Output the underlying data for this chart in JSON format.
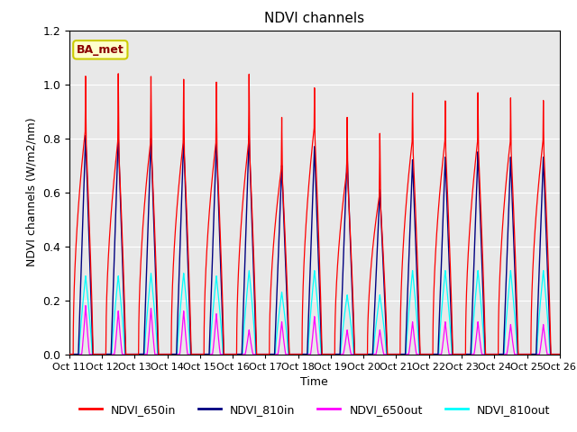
{
  "title": "NDVI channels",
  "xlabel": "Time",
  "ylabel": "NDVI channels (W/m2/nm)",
  "ylim": [
    0.0,
    1.2
  ],
  "yticks": [
    0.0,
    0.2,
    0.4,
    0.6,
    0.8,
    1.0,
    1.2
  ],
  "xtick_labels": [
    "Oct 11",
    "Oct 12",
    "Oct 13",
    "Oct 14",
    "Oct 15",
    "Oct 16",
    "Oct 17",
    "Oct 18",
    "Oct 19",
    "Oct 20",
    "Oct 21",
    "Oct 22",
    "Oct 23",
    "Oct 24",
    "Oct 25",
    "Oct 26"
  ],
  "legend_labels": [
    "NDVI_650in",
    "NDVI_810in",
    "NDVI_650out",
    "NDVI_810out"
  ],
  "legend_colors": [
    "red",
    "navy",
    "magenta",
    "cyan"
  ],
  "annotation_text": "BA_met",
  "annotation_color": "darkred",
  "annotation_bg": "#ffffcc",
  "annotation_border": "#cccc00",
  "bg_color": "#e8e8e8",
  "n_cycles": 15,
  "peak_650in": [
    1.03,
    1.04,
    1.03,
    1.02,
    1.01,
    1.04,
    0.88,
    0.99,
    0.88,
    0.82,
    0.97,
    0.94,
    0.97,
    0.95,
    0.94
  ],
  "peak_810in": [
    0.81,
    0.81,
    0.8,
    0.8,
    0.79,
    0.81,
    0.7,
    0.77,
    0.74,
    0.61,
    0.72,
    0.73,
    0.75,
    0.73,
    0.73
  ],
  "peak_650out": [
    0.18,
    0.16,
    0.17,
    0.16,
    0.15,
    0.09,
    0.12,
    0.14,
    0.09,
    0.09,
    0.12,
    0.12,
    0.12,
    0.11,
    0.11
  ],
  "peak_810out": [
    0.29,
    0.29,
    0.3,
    0.3,
    0.29,
    0.31,
    0.23,
    0.31,
    0.22,
    0.22,
    0.31,
    0.31,
    0.31,
    0.31,
    0.31
  ],
  "shoulder_650in": [
    0.84,
    0.8,
    0.8,
    0.8,
    0.8,
    0.8,
    0.7,
    0.85,
    0.69,
    0.6,
    0.8,
    0.8,
    0.8,
    0.8,
    0.8
  ],
  "figsize": [
    6.4,
    4.8
  ],
  "dpi": 100
}
